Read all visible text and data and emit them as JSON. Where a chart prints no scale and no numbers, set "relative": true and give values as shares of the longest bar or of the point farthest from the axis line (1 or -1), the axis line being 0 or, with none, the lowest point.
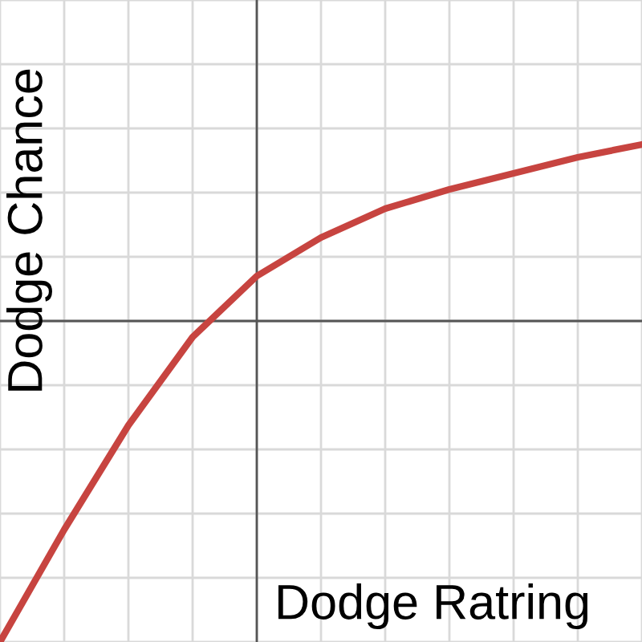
{
  "chart_data": {
    "type": "line",
    "relative": true,
    "xlabel": "Dodge Ratring",
    "ylabel": "Dodge Chance",
    "categories": [
      null,
      null,
      null,
      null,
      null,
      null,
      null,
      null,
      null,
      null,
      null
    ],
    "series": [
      {
        "color": "#c74440",
        "values": [
          -1,
          -0.65,
          -0.325,
          -0.05,
          0.14,
          0.26,
          0.35,
          0.41,
          0.46,
          0.51,
          0.55
        ]
      }
    ],
    "grid": true,
    "legend": false,
    "marker": "none",
    "line_style": "solid",
    "tick_labels": false
  }
}
